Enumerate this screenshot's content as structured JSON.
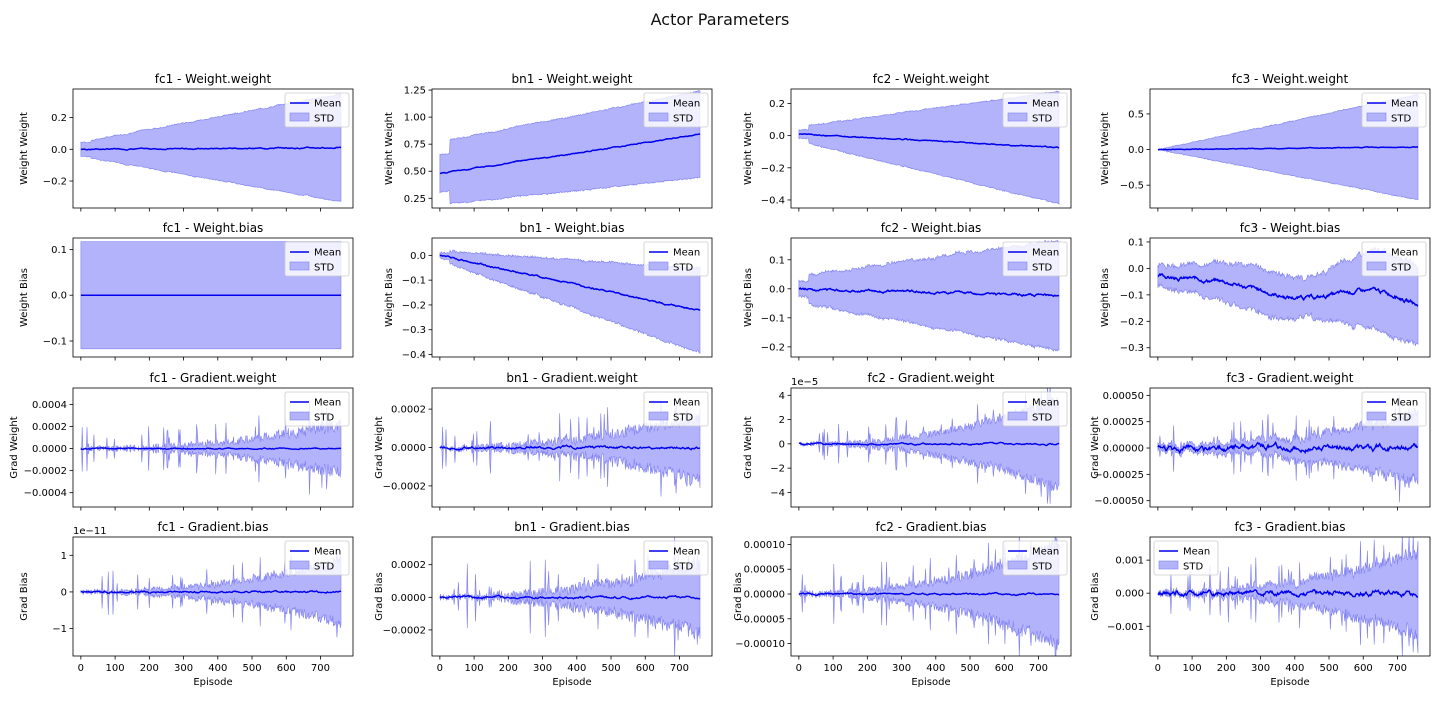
{
  "figure": {
    "title": "Actor Parameters"
  },
  "colors": {
    "mean": "#0000ee",
    "std_fill": "#b3b3fb",
    "std_line": "#8080f0",
    "axes": "#000000"
  },
  "xlabel": "Episode",
  "x_ticks": [
    0,
    100,
    200,
    300,
    400,
    500,
    600,
    700
  ],
  "x_range": [
    -23,
    795
  ],
  "legend_labels": {
    "mean": "Mean",
    "std": "STD"
  },
  "chart_data": [
    {
      "type": "area",
      "title": "fc1 - Weight.weight",
      "ylabel": "Weight Weight",
      "ylim": [
        -0.37,
        0.38
      ],
      "yticks": [
        -0.2,
        0.0,
        0.2
      ],
      "ytick_labels": [
        "−0.2",
        "0.0",
        "0.2"
      ],
      "legend_loc": "upper right",
      "x": [
        0,
        760
      ],
      "pattern": "widen",
      "mean": [
        0.0,
        0.01
      ],
      "std": [
        0.045,
        0.34
      ],
      "noise": 0.004,
      "std_noise": 0.006
    },
    {
      "type": "area",
      "title": "bn1 - Weight.weight",
      "ylabel": "Weight Weight",
      "ylim": [
        0.16,
        1.26
      ],
      "yticks": [
        0.25,
        0.5,
        0.75,
        1.0,
        1.25
      ],
      "ytick_labels": [
        "0.25",
        "0.50",
        "0.75",
        "1.00",
        "1.25"
      ],
      "legend_loc": "upper right",
      "x": [
        0,
        760
      ],
      "pattern": "drift",
      "mean": [
        0.48,
        0.84
      ],
      "std": [
        0.29,
        0.4
      ],
      "noise": 0.006,
      "std_noise": 0.01
    },
    {
      "type": "area",
      "title": "fc2 - Weight.weight",
      "ylabel": "Weight Weight",
      "ylim": [
        -0.45,
        0.29
      ],
      "yticks": [
        -0.4,
        -0.2,
        0.0,
        0.2
      ],
      "ytick_labels": [
        "−0.4",
        "−0.2",
        "0.0",
        "0.2"
      ],
      "legend_loc": "upper right",
      "x": [
        0,
        760
      ],
      "pattern": "drift",
      "mean": [
        0.01,
        -0.075
      ],
      "std": [
        0.045,
        0.35
      ],
      "noise": 0.004,
      "std_noise": 0.006
    },
    {
      "type": "area",
      "title": "fc3 - Weight.weight",
      "ylabel": "Weight Weight",
      "ylim": [
        -0.82,
        0.85
      ],
      "yticks": [
        -0.5,
        0.0,
        0.5
      ],
      "ytick_labels": [
        "−0.5",
        "0.0",
        "0.5"
      ],
      "legend_loc": "upper right",
      "x": [
        0,
        760
      ],
      "pattern": "widen",
      "mean": [
        0.0,
        0.035
      ],
      "std": [
        0.0,
        0.74
      ],
      "noise": 0.006,
      "std_noise": 0.012
    },
    {
      "type": "area",
      "title": "fc1 - Weight.bias",
      "ylabel": "Weight Bias",
      "ylim": [
        -0.135,
        0.125
      ],
      "yticks": [
        -0.1,
        0.0,
        0.1
      ],
      "ytick_labels": [
        "−0.1",
        "0.0",
        "0.1"
      ],
      "legend_loc": "upper right",
      "x": [
        0,
        760
      ],
      "pattern": "flat",
      "mean": [
        0.0,
        0.0
      ],
      "std": [
        0.117,
        0.117
      ],
      "noise": 0.0,
      "std_noise": 0.0
    },
    {
      "type": "area",
      "title": "bn1 - Weight.bias",
      "ylabel": "Weight Bias",
      "ylim": [
        -0.41,
        0.07
      ],
      "yticks": [
        -0.4,
        -0.3,
        -0.2,
        -0.1,
        0.0
      ],
      "ytick_labels": [
        "−0.4",
        "−0.3",
        "−0.2",
        "−0.1",
        "0.0"
      ],
      "legend_loc": "upper right",
      "x": [
        0,
        760
      ],
      "pattern": "drift",
      "mean": [
        0.0,
        -0.225
      ],
      "std": [
        0.02,
        0.17
      ],
      "noise": 0.004,
      "std_noise": 0.008
    },
    {
      "type": "area",
      "title": "fc2 - Weight.bias",
      "ylabel": "Weight Bias",
      "ylim": [
        -0.235,
        0.175
      ],
      "yticks": [
        -0.2,
        -0.1,
        0.0,
        0.1
      ],
      "ytick_labels": [
        "−0.2",
        "−0.1",
        "0.0",
        "0.1"
      ],
      "legend_loc": "upper right",
      "x": [
        0,
        760
      ],
      "pattern": "drift",
      "mean": [
        0.0,
        -0.025
      ],
      "std": [
        0.045,
        0.19
      ],
      "noise": 0.005,
      "std_noise": 0.008
    },
    {
      "type": "area",
      "title": "fc3 - Weight.bias",
      "ylabel": "Weight Bias",
      "ylim": [
        -0.335,
        0.115
      ],
      "yticks": [
        -0.3,
        -0.2,
        -0.1,
        0.0,
        0.1
      ],
      "ytick_labels": [
        "−0.3",
        "−0.2",
        "−0.1",
        "0.0",
        "0.1"
      ],
      "legend_loc": "upper right",
      "x": [
        0,
        760
      ],
      "pattern": "wave",
      "mean": [
        -0.03,
        -0.14
      ],
      "std": [
        0.04,
        0.17
      ],
      "noise": 0.01,
      "std_noise": 0.015
    },
    {
      "type": "area",
      "title": "fc1 - Gradient.weight",
      "ylabel": "Grad Weight",
      "ylim": [
        -0.00053,
        0.00055
      ],
      "yticks": [
        -0.0004,
        -0.0002,
        0.0,
        0.0002,
        0.0004
      ],
      "ytick_labels": [
        "−0.0004",
        "−0.0002",
        "0.0000",
        "0.0002",
        "0.0004"
      ],
      "legend_loc": "upper right",
      "x": [
        0,
        760
      ],
      "pattern": "spiky",
      "mean": [
        0.0,
        0.0
      ],
      "std": [
        5e-06,
        0.00022
      ],
      "noise": 6e-06,
      "std_noise": 9e-05
    },
    {
      "type": "area",
      "title": "bn1 - Gradient.weight",
      "ylabel": "Grad Weight",
      "ylim": [
        -0.00031,
        0.00031
      ],
      "yticks": [
        -0.0002,
        0.0,
        0.0002
      ],
      "ytick_labels": [
        "−0.0002",
        "0.0000",
        "0.0002"
      ],
      "legend_loc": "upper right",
      "x": [
        0,
        760
      ],
      "pattern": "spiky",
      "mean": [
        0.0,
        0.0
      ],
      "std": [
        4e-06,
        0.00017
      ],
      "noise": 8e-06,
      "std_noise": 6e-05
    },
    {
      "type": "area",
      "title": "fc2 - Gradient.weight",
      "ylabel": "Grad Weight",
      "ylim": [
        -5.2,
        4.6
      ],
      "yticks": [
        -4,
        -2,
        0,
        2,
        4
      ],
      "ytick_labels": [
        "−4",
        "−2",
        "0",
        "2",
        "4"
      ],
      "multiplier": "1e−5",
      "legend_loc": "upper right",
      "x": [
        0,
        760
      ],
      "pattern": "spiky",
      "mean": [
        0.0,
        0.0
      ],
      "std": [
        0.05,
        3.6
      ],
      "noise": 0.08,
      "std_noise": 0.7
    },
    {
      "type": "area",
      "title": "fc3 - Gradient.weight",
      "ylabel": "Grad Weight",
      "ylim": [
        -0.00056,
        0.00057
      ],
      "yticks": [
        -0.0005,
        -0.00025,
        0.0,
        0.00025,
        0.0005
      ],
      "ytick_labels": [
        "−0.00050",
        "−0.00025",
        "0.00000",
        "0.00025",
        "0.00050"
      ],
      "legend_loc": "upper right",
      "x": [
        0,
        760
      ],
      "pattern": "spiky",
      "mean": [
        0.0,
        0.0
      ],
      "std": [
        3e-05,
        0.00032
      ],
      "noise": 3.5e-05,
      "std_noise": 8e-05
    },
    {
      "type": "area",
      "title": "fc1 - Gradient.bias",
      "ylabel": "Grad Bias",
      "ylim": [
        -1.75,
        1.5
      ],
      "yticks": [
        -1,
        0,
        1
      ],
      "ytick_labels": [
        "−1",
        "0",
        "1"
      ],
      "multiplier": "1e−11",
      "legend_loc": "upper right",
      "x": [
        0,
        760
      ],
      "pattern": "spiky",
      "mean": [
        0.0,
        0.0
      ],
      "std": [
        0.02,
        0.85
      ],
      "noise": 0.03,
      "std_noise": 0.25
    },
    {
      "type": "area",
      "title": "bn1 - Gradient.bias",
      "ylabel": "Grad Bias",
      "ylim": [
        -0.00036,
        0.00037
      ],
      "yticks": [
        -0.0002,
        0.0,
        0.0002
      ],
      "ytick_labels": [
        "−0.0002",
        "0.0000",
        "0.0002"
      ],
      "legend_loc": "upper right",
      "x": [
        0,
        760
      ],
      "pattern": "spiky",
      "mean": [
        0.0,
        0.0
      ],
      "std": [
        5e-06,
        0.00022
      ],
      "noise": 8e-06,
      "std_noise": 8e-05
    },
    {
      "type": "area",
      "title": "fc2 - Gradient.bias",
      "ylabel": "Grad Bias",
      "ylim": [
        -0.000125,
        0.000115
      ],
      "yticks": [
        -0.0001,
        -5e-05,
        0.0,
        5e-05,
        0.0001
      ],
      "ytick_labels": [
        "−0.00010",
        "−0.00005",
        "0.00000",
        "0.00005",
        "0.00010"
      ],
      "legend_loc": "upper right",
      "x": [
        0,
        760
      ],
      "pattern": "spiky",
      "mean": [
        0.0,
        0.0
      ],
      "std": [
        2e-06,
        0.0001
      ],
      "noise": 2e-06,
      "std_noise": 2.5e-05
    },
    {
      "type": "area",
      "title": "fc3 - Gradient.bias",
      "ylabel": "Grad Bias",
      "ylim": [
        -0.0019,
        0.0017
      ],
      "yticks": [
        -0.001,
        0.0,
        0.001
      ],
      "ytick_labels": [
        "−0.001",
        "0.000",
        "0.001"
      ],
      "legend_loc": "upper left",
      "x": [
        0,
        760
      ],
      "pattern": "spiky",
      "mean": [
        0.0,
        0.0
      ],
      "std": [
        5e-05,
        0.00125
      ],
      "noise": 0.0001,
      "std_noise": 0.0003
    }
  ]
}
